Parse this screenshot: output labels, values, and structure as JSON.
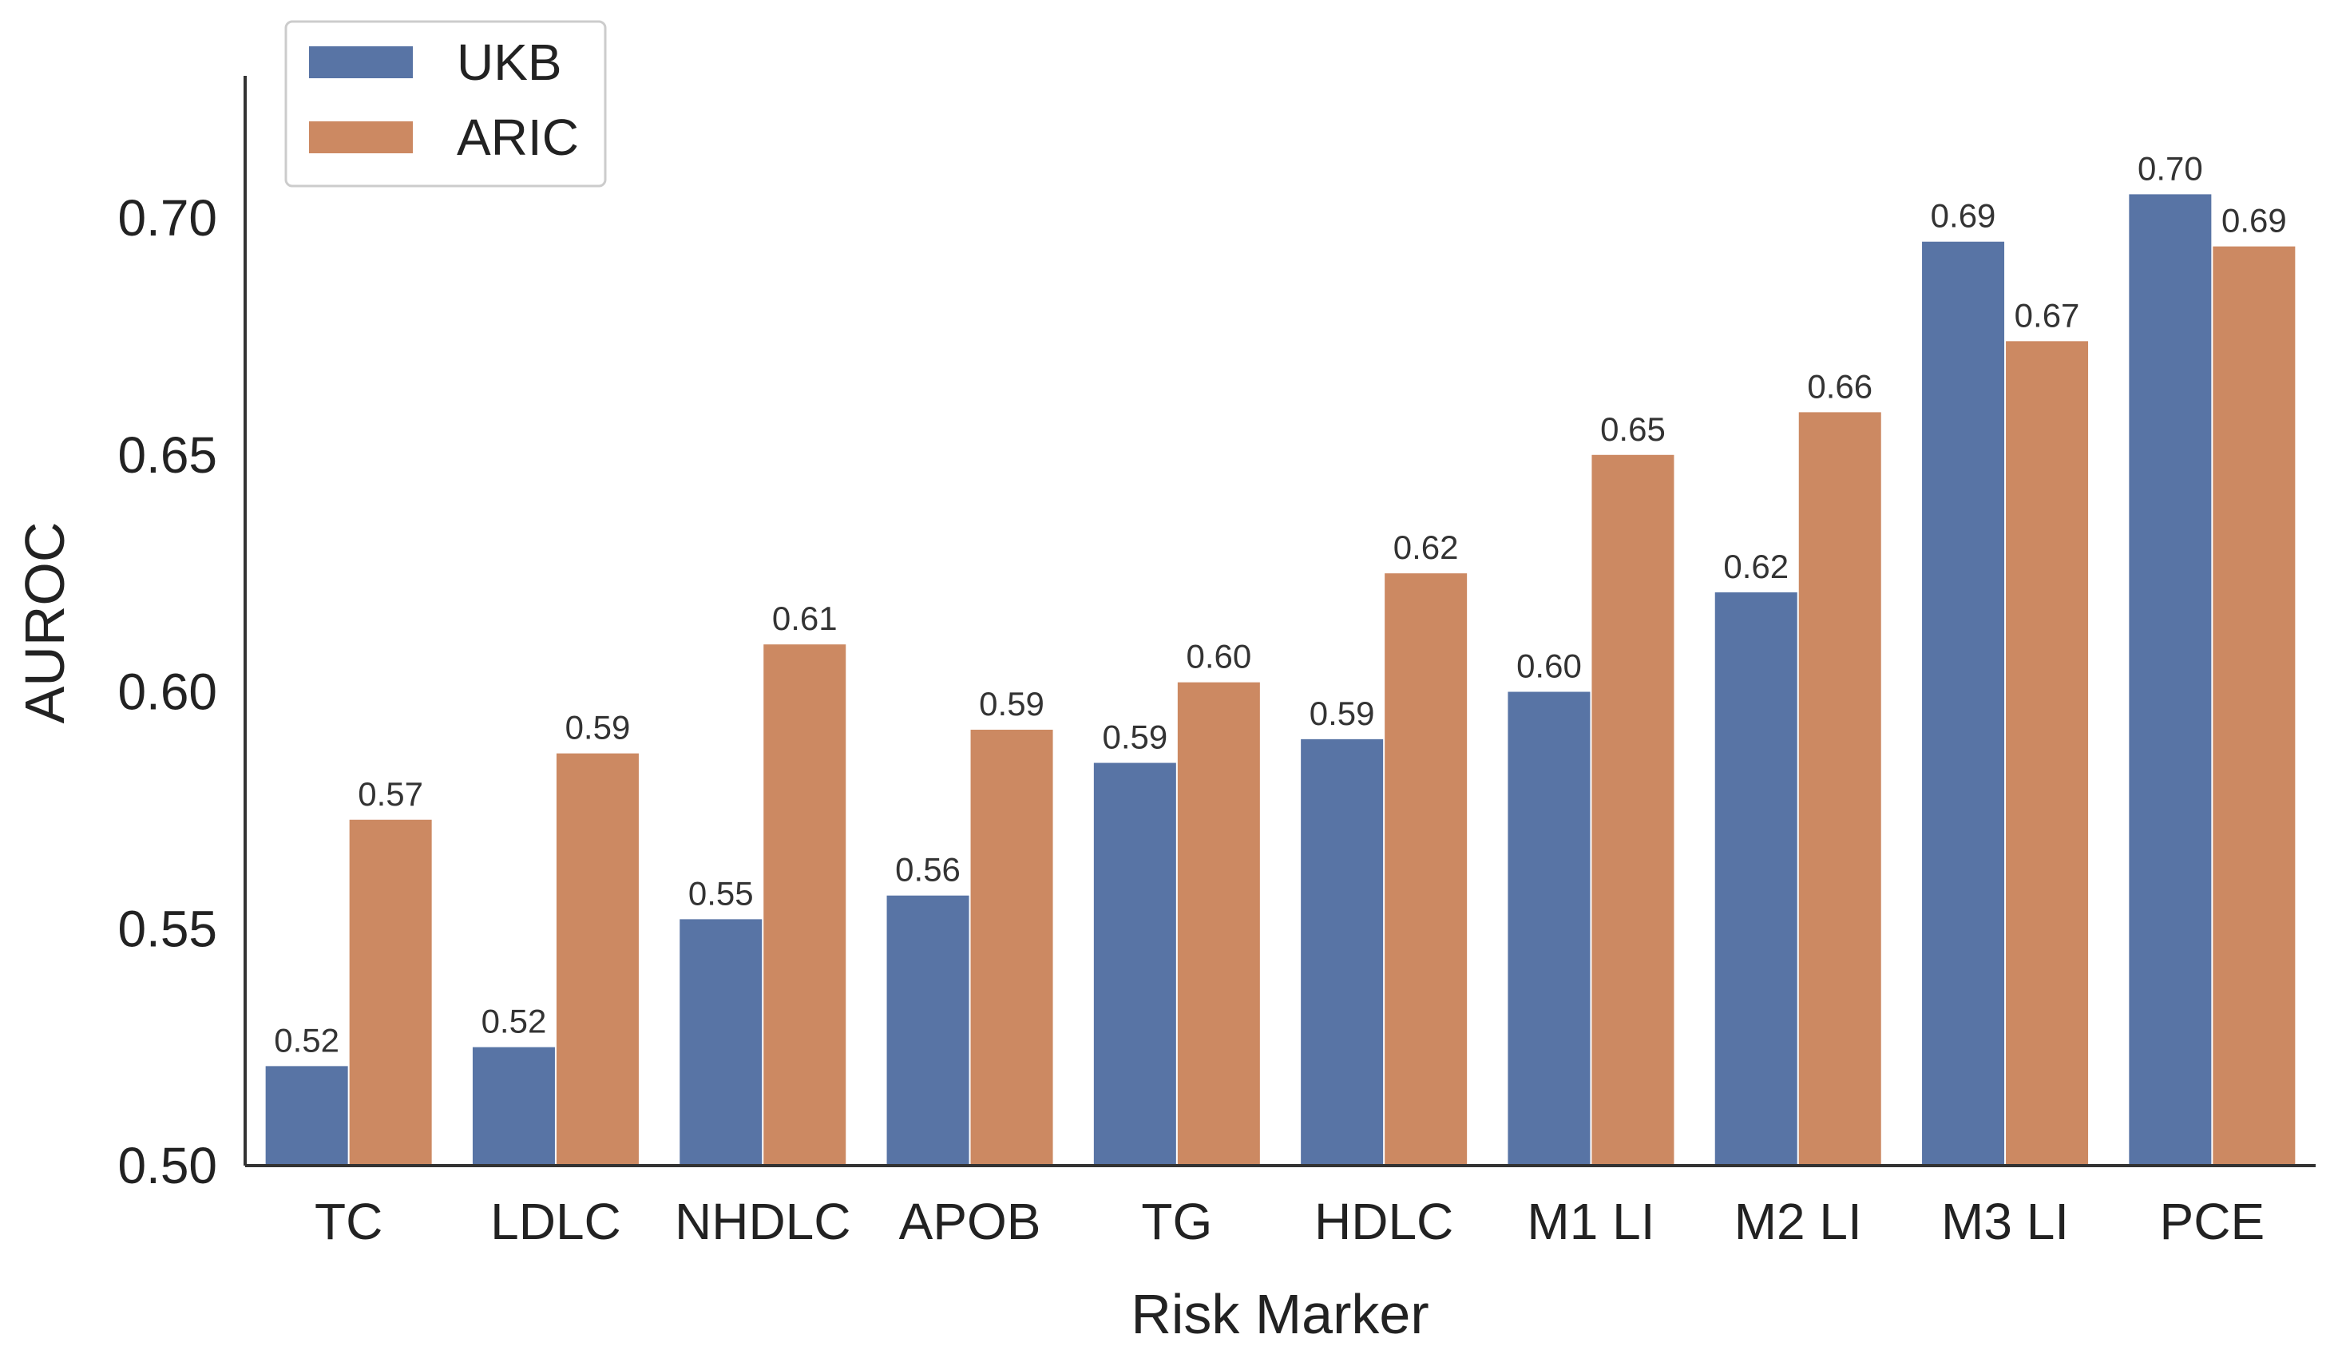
{
  "chart_data": {
    "type": "bar",
    "xlabel": "Risk Marker",
    "ylabel": "AUROC",
    "ylim": [
      0.5,
      0.73
    ],
    "yticks": [
      "0.50",
      "0.55",
      "0.60",
      "0.65",
      "0.70"
    ],
    "categories": [
      "TC",
      "LDLC",
      "NHDLC",
      "APOB",
      "TG",
      "HDLC",
      "M1 LI",
      "M2 LI",
      "M3 LI",
      "PCE"
    ],
    "series": [
      {
        "name": "UKB",
        "color": "#5874a5",
        "values": [
          0.521,
          0.525,
          0.552,
          0.557,
          0.585,
          0.59,
          0.6,
          0.621,
          0.695,
          0.705
        ],
        "labels": [
          "0.52",
          "0.52",
          "0.55",
          "0.56",
          "0.59",
          "0.59",
          "0.60",
          "0.62",
          "0.69",
          "0.70"
        ]
      },
      {
        "name": "ARIC",
        "color": "#cc8962",
        "values": [
          0.573,
          0.587,
          0.61,
          0.592,
          0.602,
          0.625,
          0.65,
          0.659,
          0.674,
          0.694
        ],
        "labels": [
          "0.57",
          "0.59",
          "0.61",
          "0.59",
          "0.60",
          "0.62",
          "0.65",
          "0.66",
          "0.67",
          "0.69"
        ]
      }
    ],
    "legend": {
      "position": "top-left",
      "entries": [
        "UKB",
        "ARIC"
      ]
    },
    "grid": false
  }
}
